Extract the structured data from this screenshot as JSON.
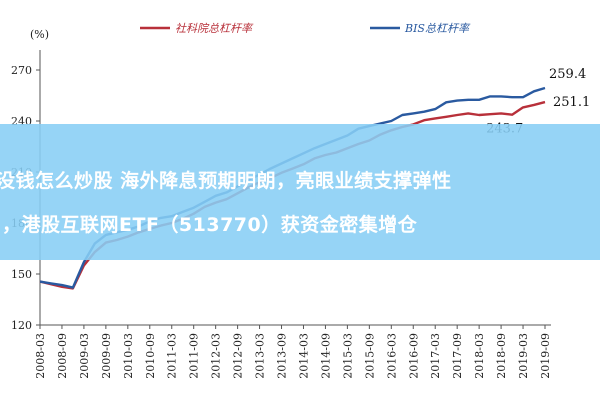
{
  "chart_data": {
    "type": "line",
    "unit_label": "(%)",
    "x": [
      "2008-03",
      "2008-06",
      "2008-09",
      "2008-12",
      "2009-03",
      "2009-06",
      "2009-09",
      "2009-12",
      "2010-03",
      "2010-06",
      "2010-09",
      "2010-12",
      "2011-03",
      "2011-06",
      "2011-09",
      "2011-12",
      "2012-03",
      "2012-06",
      "2012-09",
      "2012-12",
      "2013-03",
      "2013-06",
      "2013-09",
      "2013-12",
      "2014-03",
      "2014-06",
      "2014-09",
      "2014-12",
      "2015-03",
      "2015-06",
      "2015-09",
      "2015-12",
      "2016-03",
      "2016-06",
      "2016-09",
      "2016-12",
      "2017-03",
      "2017-06",
      "2017-09",
      "2017-12",
      "2018-03",
      "2018-06",
      "2018-09",
      "2018-12",
      "2019-03",
      "2019-06",
      "2019-09"
    ],
    "x_tick_labels": [
      "2008-03",
      "2008-09",
      "2009-03",
      "2009-09",
      "2010-03",
      "2010-09",
      "2011-03",
      "2011-09",
      "2012-03",
      "2012-09",
      "2013-03",
      "2013-09",
      "2014-03",
      "2014-09",
      "2015-03",
      "2015-09",
      "2016-03",
      "2016-09",
      "2017-03",
      "2017-09",
      "2018-03",
      "2018-09",
      "2019-03",
      "2019-09"
    ],
    "ylim": [
      120,
      270
    ],
    "y_ticks": [
      120,
      150,
      180,
      210,
      240,
      270
    ],
    "grid": false,
    "legend_position": "top",
    "series": [
      {
        "name": "社科院总杠杆率",
        "color": "#b8303a",
        "values": [
          145.5,
          144.0,
          142.5,
          141.5,
          155.0,
          163.0,
          168.5,
          170.0,
          172.0,
          174.5,
          176.5,
          178.5,
          180.0,
          182.5,
          185.5,
          189.5,
          192.0,
          194.0,
          197.5,
          201.0,
          204.0,
          206.5,
          209.5,
          212.0,
          214.5,
          218.0,
          220.0,
          221.5,
          224.0,
          226.5,
          228.5,
          232.0,
          234.5,
          236.5,
          238.0,
          240.5,
          241.5,
          242.5,
          243.5,
          244.5,
          243.5,
          244.0,
          244.5,
          243.7,
          248.0,
          249.5,
          251.1
        ]
      },
      {
        "name": "BIS总杠杆率",
        "color": "#2a5aa0",
        "values": [
          145.5,
          144.5,
          143.5,
          142.0,
          157.0,
          168.0,
          173.0,
          174.5,
          176.0,
          178.0,
          181.0,
          183.0,
          184.0,
          186.5,
          189.0,
          192.5,
          196.0,
          198.0,
          201.5,
          205.5,
          208.5,
          212.0,
          215.0,
          218.0,
          221.0,
          224.0,
          226.5,
          229.0,
          231.5,
          235.5,
          237.0,
          238.5,
          240.0,
          243.5,
          244.5,
          245.5,
          247.0,
          251.0,
          252.0,
          252.5,
          252.5,
          254.5,
          254.5,
          254.0,
          254.0,
          257.5,
          259.4
        ]
      }
    ],
    "annotations": [
      {
        "text": "259.4",
        "series": 1,
        "index": 46
      },
      {
        "text": "251.1",
        "series": 0,
        "index": 46
      },
      {
        "text": "243.7",
        "series": 0,
        "index": 43
      }
    ]
  },
  "banner": {
    "line1": "没钱怎么炒股 海外降息预期明朗，亮眼业绩支撑弹性",
    "line2": "，港股互联网ETF（513770）获资金密集增仓"
  }
}
